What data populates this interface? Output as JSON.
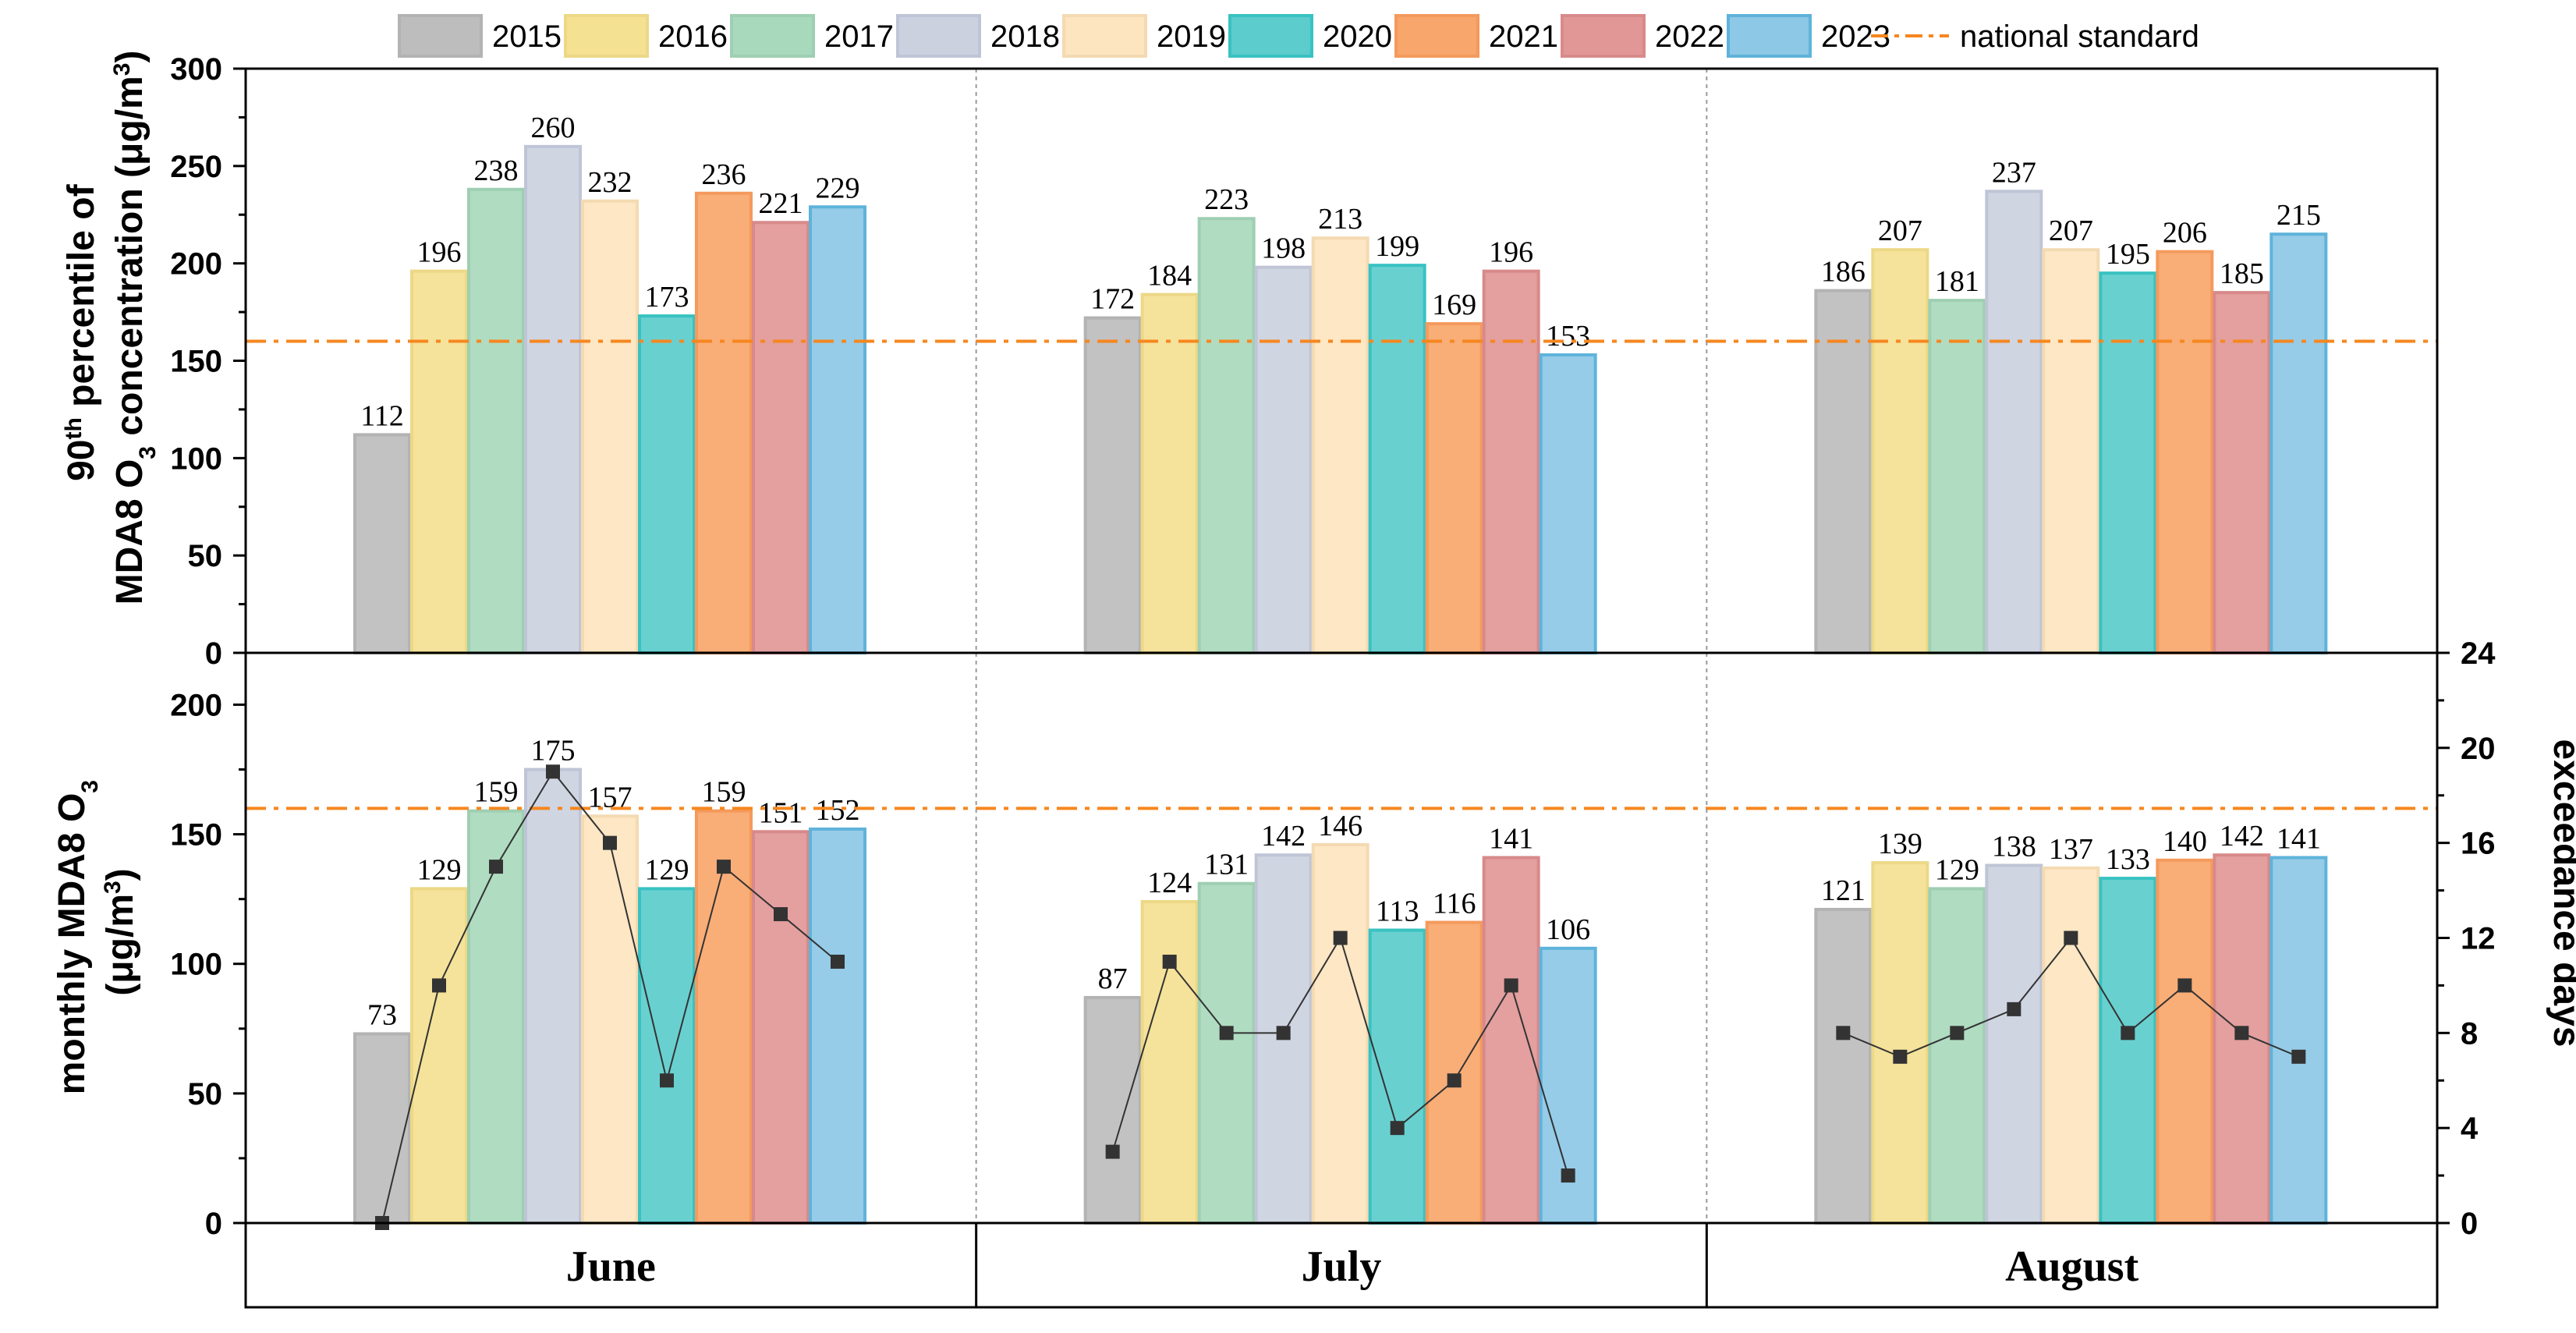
{
  "chart_data": [
    {
      "type": "bar",
      "panel": "top",
      "categories": [
        "June",
        "July",
        "August"
      ],
      "series": [
        {
          "name": "2015",
          "values": [
            112,
            172,
            186
          ]
        },
        {
          "name": "2016",
          "values": [
            196,
            184,
            207
          ]
        },
        {
          "name": "2017",
          "values": [
            238,
            223,
            181
          ]
        },
        {
          "name": "2018",
          "values": [
            260,
            198,
            237
          ]
        },
        {
          "name": "2019",
          "values": [
            232,
            213,
            207
          ]
        },
        {
          "name": "2020",
          "values": [
            173,
            199,
            195
          ]
        },
        {
          "name": "2021",
          "values": [
            236,
            169,
            206
          ]
        },
        {
          "name": "2022",
          "values": [
            221,
            196,
            185
          ]
        },
        {
          "name": "2023",
          "values": [
            229,
            153,
            215
          ]
        }
      ],
      "ylabel_line1": "90",
      "ylabel_sup": "th",
      "ylabel_line1_rest": " percentile of",
      "ylabel_line2_a": "MDA8 O",
      "ylabel_line2_sub": "3",
      "ylabel_line2_b": " concentration (μg/m",
      "ylabel_line2_sup": "3",
      "ylabel_line2_c": ")",
      "ylim": [
        0,
        300
      ],
      "yticks": [
        0,
        50,
        100,
        150,
        200,
        250,
        300
      ],
      "reference_line": {
        "name": "national standard",
        "value": 160
      }
    },
    {
      "type": "bar",
      "panel": "bottom",
      "categories": [
        "June",
        "July",
        "August"
      ],
      "series": [
        {
          "name": "2015",
          "values": [
            73,
            87,
            121
          ]
        },
        {
          "name": "2016",
          "values": [
            129,
            124,
            139
          ]
        },
        {
          "name": "2017",
          "values": [
            159,
            131,
            129
          ]
        },
        {
          "name": "2018",
          "values": [
            175,
            142,
            138
          ]
        },
        {
          "name": "2019",
          "values": [
            157,
            146,
            137
          ]
        },
        {
          "name": "2020",
          "values": [
            129,
            113,
            133
          ]
        },
        {
          "name": "2021",
          "values": [
            159,
            116,
            140
          ]
        },
        {
          "name": "2022",
          "values": [
            151,
            141,
            142
          ]
        },
        {
          "name": "2023",
          "values": [
            152,
            106,
            141
          ]
        }
      ],
      "ylabel_line1_a": "monthly MDA8 O",
      "ylabel_line1_sub": "3",
      "ylabel_line2_a": "(μg/m",
      "ylabel_line2_sup": "3",
      "ylabel_line2_b": ")",
      "ylim": [
        0,
        220
      ],
      "yticks": [
        0,
        50,
        100,
        150,
        200
      ],
      "reference_line": {
        "name": "national standard",
        "value": 160
      },
      "secondary_axis": {
        "label": "exceedance days",
        "ylim": [
          0,
          24
        ],
        "yticks": [
          0,
          4,
          8,
          12,
          16,
          20,
          24
        ]
      },
      "line_series": {
        "name": "exceedance days",
        "values": [
          [
            0,
            10,
            15,
            19,
            16,
            6,
            15,
            13,
            11
          ],
          [
            3,
            11,
            8,
            8,
            12,
            4,
            6,
            10,
            2
          ],
          [
            8,
            7,
            8,
            9,
            12,
            8,
            10,
            8,
            7
          ]
        ]
      }
    }
  ],
  "legend": {
    "position": "top",
    "items": [
      "2015",
      "2016",
      "2017",
      "2018",
      "2019",
      "2020",
      "2021",
      "2022",
      "2023"
    ],
    "line_item": "national standard"
  },
  "colors": {
    "fills": [
      "#bdbdbd",
      "#f4e192",
      "#a9d9bd",
      "#ccd1e0",
      "#fde5bf",
      "#5ccccc",
      "#f8a66b",
      "#e29797",
      "#8dc8e6"
    ],
    "strokes": [
      "#b3b3b3",
      "#ecd886",
      "#9fcfb2",
      "#bfc5d6",
      "#f4dab2",
      "#39c2c2",
      "#f49a5c",
      "#d88a8a",
      "#5fb3da"
    ],
    "reference": "#f6871f",
    "marker": "#333333"
  }
}
